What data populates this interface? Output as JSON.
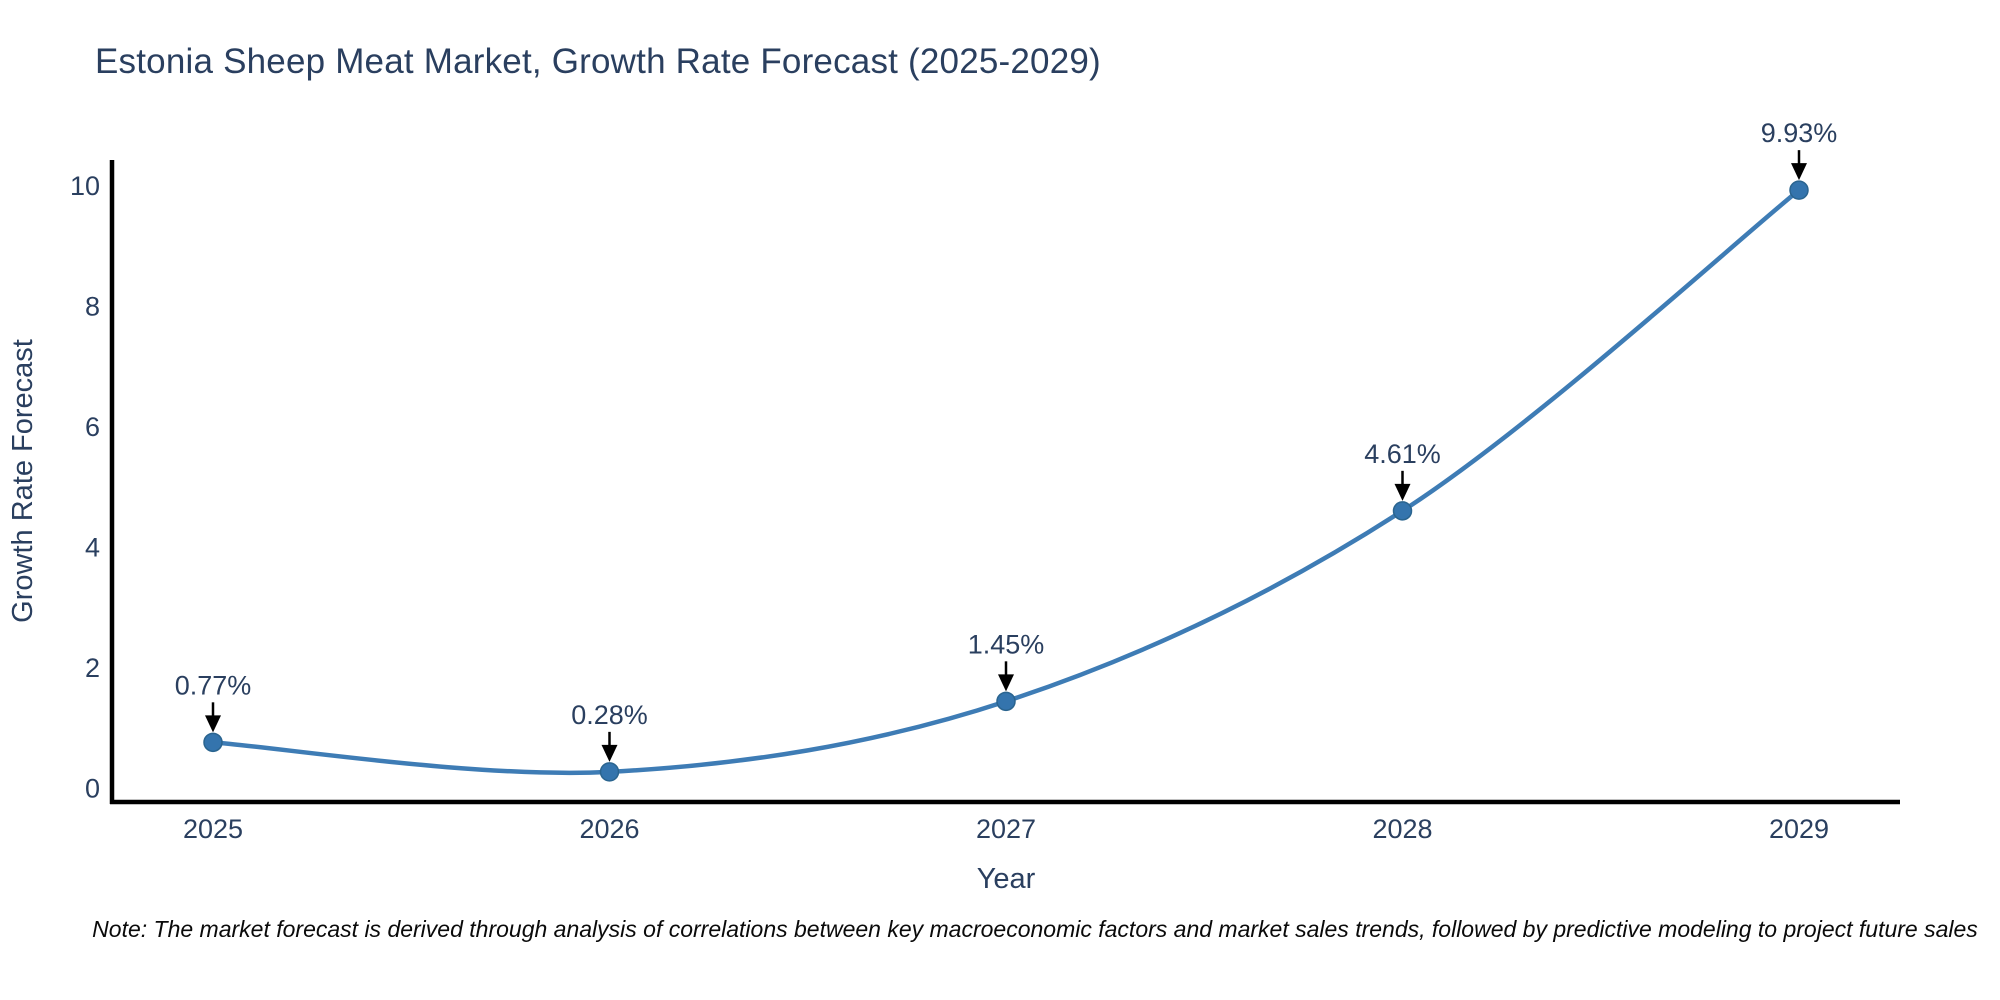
{
  "note": "Note: The market forecast is derived through analysis of correlations between key macroeconomic factors and market sales trends, followed by predictive modeling to project future sales",
  "chart_data": {
    "type": "line",
    "title": "Estonia Sheep Meat Market, Growth Rate Forecast (2025-2029)",
    "xlabel": "Year",
    "ylabel": "Growth Rate Forecast",
    "x": [
      "2025",
      "2026",
      "2027",
      "2028",
      "2029"
    ],
    "values": [
      0.77,
      0.28,
      1.45,
      4.61,
      9.93
    ],
    "point_labels": [
      "0.77%",
      "0.28%",
      "1.45%",
      "4.61%",
      "9.93%"
    ],
    "yticks": [
      0,
      2,
      4,
      6,
      8,
      10
    ],
    "ylim": [
      -0.22,
      10.43
    ],
    "grid": false,
    "legend": "none",
    "smooth": true,
    "line_color": "#3e7cb5",
    "marker_color": "#3474ad",
    "marker_edge_color": "#2a648f",
    "arrow_color": "#000000",
    "axis_color": "#000000",
    "text_color": "#2a3f5f"
  }
}
